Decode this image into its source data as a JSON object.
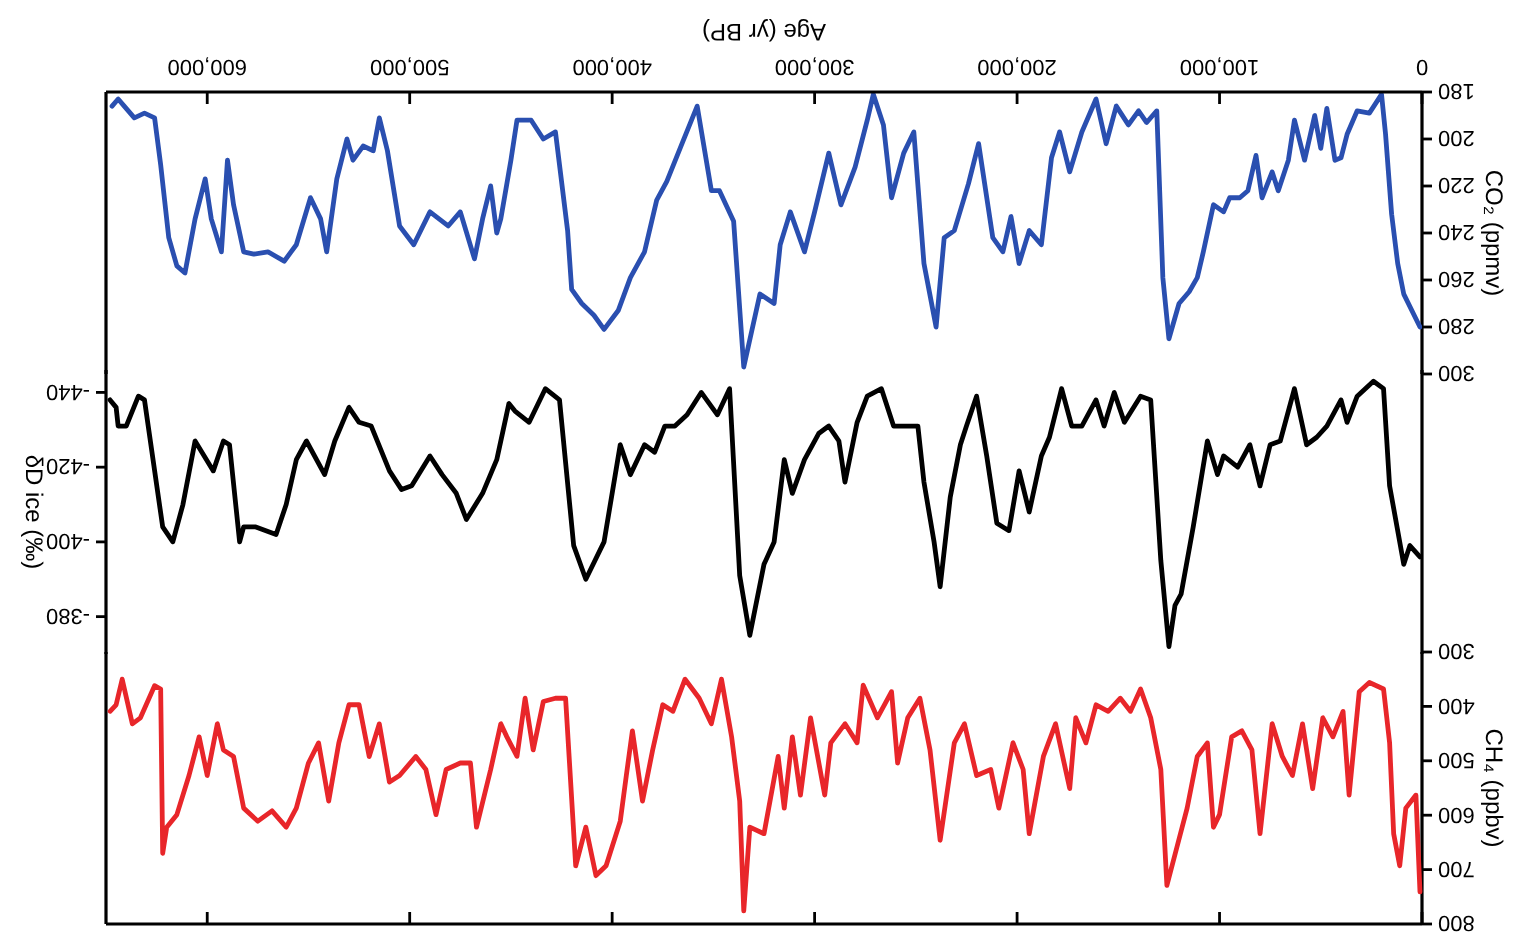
{
  "chart_data": [
    {
      "type": "line",
      "xlabel": "Age (yr BP)",
      "ylabel": "CO₂ (ppmv)",
      "xlim": [
        650000,
        0
      ],
      "ylim": [
        300,
        180
      ],
      "xticks": [
        0,
        {
          "value": 100000,
          "label": "100,000"
        },
        {
          "value": 200000,
          "label": "200,000"
        },
        {
          "value": 300000,
          "label": "300,000"
        },
        {
          "value": 400000,
          "label": "400,000"
        },
        {
          "value": 500000,
          "label": "500,000"
        },
        {
          "value": 600000,
          "label": "600,000"
        }
      ],
      "yticks": [
        180,
        200,
        220,
        240,
        260,
        280,
        300
      ],
      "series": [
        {
          "color": "#2a4fb0",
          "x": [
            1000,
            9000,
            12000,
            15000,
            18000,
            20000,
            26000,
            32000,
            37000,
            40000,
            43000,
            47000,
            50000,
            53000,
            58000,
            63000,
            66000,
            71000,
            74000,
            79000,
            82000,
            86000,
            90000,
            95000,
            98000,
            103000,
            108000,
            111000,
            115000,
            120000,
            125000,
            128000,
            131000,
            136000,
            140000,
            145000,
            151000,
            156000,
            161000,
            168000,
            174000,
            179000,
            183000,
            188000,
            194000,
            199000,
            203000,
            207000,
            212000,
            219000,
            224000,
            231000,
            236000,
            240000,
            246000,
            251000,
            256000,
            262000,
            266000,
            271000,
            274000,
            280000,
            287000,
            293000,
            300000,
            305000,
            312000,
            317000,
            320000,
            327000,
            335000,
            340000,
            347000,
            351000,
            358000,
            366000,
            373000,
            378000,
            384000,
            391000,
            397000,
            404000,
            409000,
            415000,
            420000,
            422000,
            428000,
            434000,
            440000,
            447000,
            450000,
            455000,
            457000,
            460000,
            464000,
            468000,
            475000,
            481000,
            490000,
            498000,
            505000,
            511000,
            515000,
            518000,
            523000,
            528000,
            531000,
            536000,
            541000,
            544000,
            549000,
            556000,
            562000,
            570000,
            577000,
            582000,
            587000,
            590000,
            593000,
            598000,
            601000,
            606000,
            611000,
            615000,
            619000,
            623000,
            626000,
            631000,
            636000,
            641000,
            644000,
            647000
          ],
          "values": [
            280,
            266,
            253,
            232,
            198,
            181,
            189,
            188,
            198,
            208,
            209,
            187,
            204,
            190,
            209,
            192,
            209,
            222,
            214,
            225,
            207,
            222,
            225,
            225,
            231,
            228,
            248,
            259,
            265,
            270,
            285,
            259,
            188,
            193,
            188,
            194,
            186,
            202,
            183,
            197,
            214,
            197,
            208,
            245,
            239,
            253,
            233,
            248,
            242,
            202,
            219,
            239,
            242,
            280,
            253,
            197,
            206,
            225,
            194,
            181,
            192,
            212,
            228,
            206,
            231,
            248,
            231,
            245,
            270,
            266,
            297,
            235,
            222,
            222,
            186,
            203,
            218,
            226,
            248,
            259,
            273,
            281,
            275,
            270,
            264,
            239,
            197,
            200,
            192,
            192,
            209,
            234,
            240,
            220,
            234,
            251,
            231,
            237,
            231,
            245,
            237,
            205,
            191,
            205,
            203,
            209,
            200,
            217,
            248,
            234,
            225,
            245,
            252,
            248,
            249,
            248,
            228,
            209,
            248,
            234,
            217,
            234,
            257,
            254,
            242,
            211,
            191,
            189,
            191,
            186,
            183,
            186
          ]
        }
      ]
    },
    {
      "type": "line",
      "ylabel": "δD ice (‰)",
      "xlim": [
        650000,
        0
      ],
      "ylim": [
        -370,
        -446
      ],
      "tick_labels": "y",
      "yticks": [
        -440,
        -420,
        -400,
        -380
      ],
      "series": [
        {
          "color": "#000000",
          "x": [
            1000,
            6000,
            9000,
            16000,
            19000,
            24000,
            32000,
            37000,
            40000,
            47000,
            52000,
            57000,
            63000,
            70000,
            75000,
            80000,
            85000,
            91000,
            98000,
            101000,
            106000,
            113000,
            119000,
            122000,
            125000,
            129000,
            134000,
            139000,
            147000,
            152000,
            157000,
            161000,
            168000,
            173000,
            178000,
            184000,
            188000,
            194000,
            199000,
            204000,
            210000,
            215000,
            220000,
            225000,
            228000,
            233000,
            238000,
            241000,
            246000,
            249000,
            256000,
            261000,
            267000,
            274000,
            279000,
            285000,
            288000,
            293000,
            298000,
            305000,
            311000,
            315000,
            320000,
            325000,
            332000,
            337000,
            342000,
            348000,
            356000,
            363000,
            369000,
            374000,
            379000,
            384000,
            391000,
            396000,
            404000,
            413000,
            419000,
            426000,
            433000,
            441000,
            448000,
            451000,
            457000,
            464000,
            472000,
            477000,
            484000,
            490000,
            499000,
            504000,
            510000,
            519000,
            525000,
            530000,
            537000,
            542000,
            551000,
            556000,
            561000,
            566000,
            576000,
            582000,
            584000,
            589000,
            592000,
            597000,
            606000,
            612000,
            617000,
            622000,
            631000,
            634000,
            640000,
            644000,
            645000,
            648000
          ],
          "values": [
            -396,
            -399,
            -394,
            -415,
            -441,
            -443,
            -439,
            -432,
            -438,
            -431,
            -428,
            -426,
            -441,
            -427,
            -426,
            -415,
            -426,
            -420,
            -423,
            -418,
            -427,
            -404,
            -386,
            -383,
            -372,
            -395,
            -438,
            -439,
            -432,
            -440,
            -431,
            -438,
            -431,
            -431,
            -441,
            -428,
            -423,
            -408,
            -419,
            -403,
            -405,
            -423,
            -439,
            -431,
            -426,
            -412,
            -388,
            -400,
            -416,
            -431,
            -431,
            -431,
            -441,
            -439,
            -432,
            -416,
            -427,
            -431,
            -429,
            -422,
            -413,
            -422,
            -400,
            -394,
            -375,
            -391,
            -441,
            -434,
            -440,
            -434,
            -431,
            -431,
            -424,
            -426,
            -418,
            -426,
            -400,
            -390,
            -399,
            -438,
            -441,
            -432,
            -435,
            -437,
            -422,
            -413,
            -406,
            -413,
            -418,
            -423,
            -415,
            -414,
            -419,
            -431,
            -432,
            -436,
            -427,
            -418,
            -427,
            -422,
            -410,
            -402,
            -404,
            -404,
            -400,
            -426,
            -427,
            -419,
            -427,
            -410,
            -400,
            -404,
            -438,
            -439,
            -431,
            -431,
            -436,
            -438
          ]
        }
      ]
    },
    {
      "type": "line",
      "ylabel": "CH₄ (ppbv)",
      "xlim": [
        650000,
        0
      ],
      "ylim": [
        800,
        300
      ],
      "tick_labels": "y",
      "xticks": [
        {
          "value": 0,
          "label": null
        },
        {
          "value": 100000,
          "label": null
        },
        {
          "value": 200000,
          "label": null
        },
        {
          "value": 300000,
          "label": null
        },
        {
          "value": 400000,
          "label": null
        },
        {
          "value": 500000,
          "label": null
        },
        {
          "value": 600000,
          "label": null
        }
      ],
      "yticks": [
        300,
        400,
        500,
        600,
        700,
        800
      ],
      "series": [
        {
          "color": "#e8262a",
          "x": [
            1000,
            3000,
            8000,
            11000,
            14000,
            16000,
            19000,
            26000,
            31000,
            36000,
            39000,
            44000,
            49000,
            54000,
            59000,
            64000,
            69000,
            74000,
            80000,
            84000,
            89000,
            94000,
            100000,
            103000,
            106000,
            111000,
            116000,
            121000,
            126000,
            129000,
            134000,
            139000,
            144000,
            149000,
            155000,
            161000,
            166000,
            171000,
            174000,
            181000,
            187000,
            194000,
            197000,
            202000,
            209000,
            213000,
            220000,
            226000,
            231000,
            238000,
            243000,
            248000,
            254000,
            259000,
            262000,
            269000,
            276000,
            279000,
            285000,
            292000,
            295000,
            302000,
            307000,
            311000,
            315000,
            318000,
            325000,
            332000,
            335000,
            337000,
            341000,
            346000,
            351000,
            357000,
            364000,
            370000,
            375000,
            380000,
            385000,
            390000,
            393000,
            396000,
            403000,
            408000,
            413000,
            418000,
            423000,
            428000,
            434000,
            439000,
            443000,
            447000,
            452000,
            455000,
            460000,
            467000,
            470000,
            475000,
            482000,
            487000,
            492000,
            497000,
            505000,
            510000,
            515000,
            520000,
            525000,
            530000,
            535000,
            540000,
            545000,
            550000,
            556000,
            561000,
            568000,
            575000,
            582000,
            587000,
            592000,
            595000,
            600000,
            604000,
            609000,
            615000,
            620000,
            622000,
            623000,
            626000,
            633000,
            637000,
            642000,
            645000,
            648000
          ],
          "values": [
            741,
            563,
            587,
            693,
            634,
            467,
            368,
            356,
            373,
            563,
            409,
            456,
            421,
            551,
            432,
            527,
            492,
            432,
            634,
            480,
            445,
            456,
            599,
            622,
            467,
            492,
            587,
            658,
            729,
            516,
            421,
            368,
            409,
            385,
            409,
            397,
            467,
            421,
            551,
            432,
            492,
            634,
            516,
            467,
            587,
            516,
            527,
            432,
            467,
            646,
            480,
            385,
            421,
            504,
            373,
            421,
            361,
            467,
            432,
            467,
            563,
            421,
            563,
            456,
            587,
            492,
            634,
            622,
            776,
            574,
            456,
            350,
            432,
            385,
            350,
            409,
            397,
            480,
            574,
            445,
            527,
            611,
            693,
            711,
            622,
            693,
            385,
            385,
            391,
            480,
            385,
            492,
            456,
            432,
            516,
            622,
            504,
            504,
            516,
            599,
            516,
            492,
            527,
            539,
            432,
            492,
            397,
            397,
            467,
            574,
            467,
            504,
            587,
            622,
            592,
            611,
            587,
            492,
            480,
            432,
            527,
            456,
            527,
            599,
            622,
            670,
            368,
            362,
            421,
            432,
            350,
            397,
            409
          ]
        }
      ]
    }
  ]
}
